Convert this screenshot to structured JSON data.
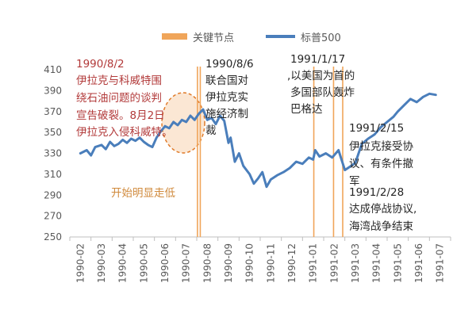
{
  "colors": {
    "line": "#4a7ebb",
    "key_node": "#f0a55a",
    "ellipse": "#e07b2a",
    "ellipse_fill": "#f7c9a0",
    "red_text": "#b23a3a",
    "orange_text": "#d08a3c",
    "axis": "#bfbfbf",
    "grid": "#d9d9d9"
  },
  "chart_data": {
    "type": "line",
    "title": "",
    "xlabel": "",
    "ylabel": "",
    "ylim": [
      250,
      410
    ],
    "yticks": [
      250,
      270,
      290,
      310,
      330,
      350,
      370,
      390,
      410
    ],
    "categories": [
      "1990-02",
      "1990-03",
      "1990-04",
      "1990-05",
      "1990-06",
      "1990-07",
      "1990-08",
      "1990-09",
      "1990-10",
      "1990-11",
      "1990-12",
      "1991-01",
      "1991-02",
      "1991-03",
      "1991-04",
      "1991-05",
      "1991-06",
      "1991-07"
    ],
    "legend": {
      "position": "top",
      "items": [
        {
          "label": "关键节点",
          "type": "bar"
        },
        {
          "label": "标普500",
          "type": "line"
        }
      ]
    },
    "series": [
      {
        "name": "标普500",
        "x": [
          1,
          1.3,
          1.5,
          1.7,
          2,
          2.2,
          2.4,
          2.6,
          2.8,
          3,
          3.2,
          3.4,
          3.6,
          3.8,
          4,
          4.2,
          4.4,
          4.6,
          4.8,
          5,
          5.2,
          5.4,
          5.6,
          5.8,
          6,
          6.2,
          6.4,
          6.6,
          6.8,
          7,
          7.2,
          7.4,
          7.6,
          7.8,
          8,
          8.1,
          8.3,
          8.5,
          8.7,
          9,
          9.2,
          9.4,
          9.6,
          9.8,
          10,
          10.3,
          10.6,
          10.9,
          11.2,
          11.5,
          11.8,
          12,
          12.1,
          12.3,
          12.6,
          12.9,
          13.2,
          13.5,
          13.8,
          14,
          14.3,
          14.6,
          14.9,
          15.2,
          15.5,
          15.8,
          16,
          16.3,
          16.6,
          16.9,
          17.2,
          17.5,
          17.8
        ],
        "values": [
          330,
          333,
          328,
          336,
          338,
          334,
          341,
          337,
          339,
          343,
          340,
          344,
          342,
          345,
          341,
          338,
          336,
          345,
          351,
          356,
          354,
          360,
          357,
          362,
          360,
          366,
          362,
          368,
          372,
          362,
          364,
          358,
          366,
          361,
          340,
          345,
          322,
          330,
          318,
          310,
          301,
          306,
          312,
          298,
          305,
          309,
          312,
          316,
          322,
          320,
          326,
          324,
          333,
          327,
          330,
          326,
          333,
          314,
          318,
          321,
          339,
          344,
          348,
          355,
          360,
          365,
          370,
          376,
          382,
          379,
          384,
          387,
          386
        ]
      }
    ],
    "key_nodes": [
      "1990-08-02",
      "1990-08-06",
      "1991-01-17",
      "1991-02-15",
      "1991-02-28"
    ],
    "annotations": {
      "a1_date": "1990/8/2",
      "a1_l1": "伊拉克与科威特围",
      "a1_l2": "绕石油问题的谈判",
      "a1_l3": "宣告破裂。8月2日",
      "a1_l4": "伊拉克入侵科威特。",
      "a2_l1": "1990/8/6",
      "a2_l2": "联合国对",
      "a2_l3": "伊拉克实",
      "a2_l4": "施经济制",
      "a2_l5": "裁",
      "a3_l1": "1991/1/17",
      "a3_l2": ",以美国为首的",
      "a3_l3": "多国部队轰炸",
      "a3_l4": "巴格达",
      "a4_l1": "1991/2/15",
      "a4_l2": "伊拉克接受协",
      "a4_l3": "议、有条件撤",
      "a4_l4": "军",
      "a5_l1": "1991/2/28",
      "a5_l2": "达成停战协议,",
      "a5_l3": "海湾战争结束",
      "a6": "开始明显走低"
    }
  }
}
